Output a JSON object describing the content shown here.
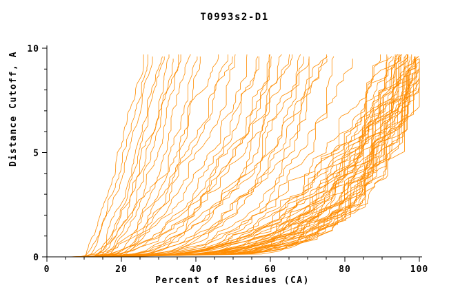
{
  "chart_data": {
    "type": "line",
    "title": "T0993s2-D1",
    "xlabel": "Percent of Residues (CA)",
    "ylabel": "Distance Cutoff, A",
    "xlim": [
      0,
      100
    ],
    "ylim": [
      0,
      10
    ],
    "xticks": [
      0,
      20,
      40,
      60,
      80,
      100
    ],
    "yticks": [
      0,
      5,
      10
    ],
    "x_minor_step": 5,
    "y_minor_step": 1,
    "grid": false,
    "legend": null,
    "line_color": "#ff8c00",
    "axis_color": "#000000",
    "curve_format": [
      "x_start_percent",
      "x_end_percent",
      "shape_exponent",
      "y_end_cutoff"
    ],
    "curves": [
      [
        5,
        97,
        4.5,
        9.7
      ],
      [
        6,
        99,
        5.0,
        9.6
      ],
      [
        7,
        95,
        4.0,
        9.7
      ],
      [
        8,
        100,
        5.5,
        9.5
      ],
      [
        6,
        92,
        3.8,
        9.7
      ],
      [
        9,
        98,
        4.8,
        9.6
      ],
      [
        10,
        96,
        4.2,
        9.7
      ],
      [
        7,
        99,
        5.2,
        9.4
      ],
      [
        8,
        94,
        3.9,
        9.7
      ],
      [
        11,
        97,
        4.6,
        9.6
      ],
      [
        6,
        100,
        5.8,
        9.3
      ],
      [
        9,
        93,
        3.6,
        9.7
      ],
      [
        12,
        98,
        4.4,
        9.6
      ],
      [
        7,
        96,
        4.1,
        9.7
      ],
      [
        10,
        99,
        5.0,
        9.5
      ],
      [
        8,
        91,
        3.4,
        9.7
      ],
      [
        13,
        97,
        4.3,
        9.6
      ],
      [
        9,
        100,
        5.4,
        9.2
      ],
      [
        11,
        95,
        3.7,
        9.7
      ],
      [
        6,
        94,
        4.0,
        9.6
      ],
      [
        14,
        99,
        4.9,
        9.5
      ],
      [
        10,
        92,
        3.5,
        9.7
      ],
      [
        8,
        98,
        4.7,
        9.6
      ],
      [
        12,
        96,
        4.0,
        9.7
      ],
      [
        7,
        93,
        3.6,
        9.6
      ],
      [
        15,
        100,
        5.1,
        9.4
      ],
      [
        9,
        95,
        4.2,
        9.7
      ],
      [
        11,
        99,
        5.3,
        9.5
      ],
      [
        13,
        94,
        3.8,
        9.6
      ],
      [
        8,
        97,
        4.5,
        9.7
      ],
      [
        10,
        98,
        4.6,
        9.5
      ],
      [
        12,
        93,
        3.5,
        9.7
      ],
      [
        9,
        91,
        3.3,
        9.6
      ],
      [
        14,
        96,
        4.1,
        9.6
      ],
      [
        7,
        90,
        3.2,
        9.7
      ],
      [
        10,
        100,
        6.0,
        9.0
      ],
      [
        12,
        99,
        5.6,
        8.8
      ],
      [
        11,
        98,
        5.2,
        9.1
      ],
      [
        13,
        100,
        6.2,
        8.6
      ],
      [
        9,
        99,
        5.8,
        9.0
      ],
      [
        15,
        100,
        5.5,
        9.3
      ],
      [
        12,
        97,
        5.0,
        9.2
      ],
      [
        10,
        96,
        4.8,
        9.4
      ],
      [
        16,
        99,
        5.4,
        9.1
      ],
      [
        14,
        98,
        5.1,
        8.9
      ],
      [
        10,
        55,
        2.2,
        9.7
      ],
      [
        12,
        60,
        2.5,
        9.6
      ],
      [
        14,
        65,
        2.8,
        9.7
      ],
      [
        9,
        50,
        2.0,
        9.6
      ],
      [
        16,
        70,
        2.9,
        9.7
      ],
      [
        11,
        58,
        2.3,
        9.6
      ],
      [
        13,
        63,
        2.6,
        9.7
      ],
      [
        15,
        68,
        2.7,
        9.5
      ],
      [
        10,
        48,
        1.9,
        9.7
      ],
      [
        17,
        72,
        3.0,
        9.6
      ],
      [
        12,
        52,
        2.1,
        9.7
      ],
      [
        18,
        75,
        3.1,
        9.6
      ],
      [
        11,
        62,
        2.4,
        9.7
      ],
      [
        14,
        57,
        2.2,
        9.6
      ],
      [
        16,
        66,
        2.6,
        9.7
      ],
      [
        13,
        73,
        2.9,
        9.5
      ],
      [
        9,
        45,
        1.8,
        9.7
      ],
      [
        19,
        78,
        3.2,
        9.6
      ],
      [
        15,
        61,
        2.3,
        9.7
      ],
      [
        12,
        69,
        2.7,
        9.6
      ],
      [
        20,
        80,
        3.3,
        9.5
      ],
      [
        17,
        74,
        2.8,
        9.7
      ],
      [
        10,
        27,
        1.5,
        9.7
      ],
      [
        12,
        30,
        1.6,
        9.6
      ],
      [
        14,
        33,
        1.7,
        9.7
      ],
      [
        11,
        28,
        1.4,
        9.6
      ],
      [
        15,
        36,
        1.8,
        9.7
      ],
      [
        13,
        31,
        1.5,
        9.6
      ],
      [
        16,
        38,
        1.9,
        9.7
      ],
      [
        12,
        34,
        1.6,
        9.5
      ],
      [
        17,
        40,
        2.0,
        9.6
      ],
      [
        10,
        26,
        1.3,
        9.7
      ],
      [
        18,
        42,
        2.1,
        9.6
      ],
      [
        14,
        35,
        1.7,
        9.7
      ]
    ]
  }
}
